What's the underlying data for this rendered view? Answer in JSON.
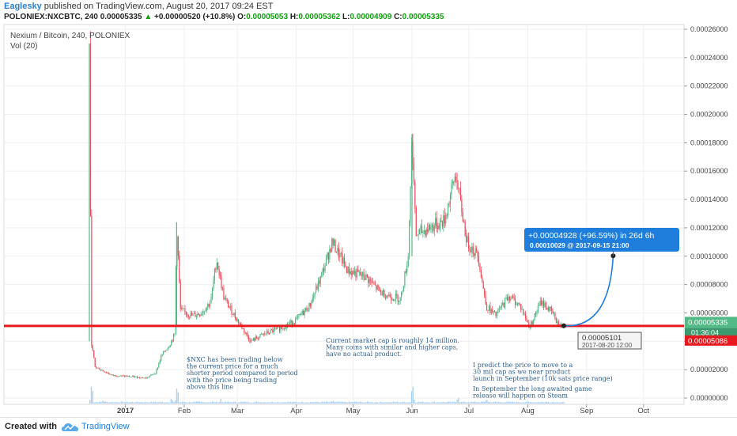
{
  "header": {
    "author": "Eaglesky",
    "published": " published on TradingView.com, August 20, 2017 09:24 EST",
    "symbol_line": "POLONIEX:NXCBTC, 240  0.00005335 ",
    "change_arrow": "▲",
    "change": " +0.00000520 (+10.8%) ",
    "o_label": "O:",
    "o_value": "0.00005053",
    "h_label": " H:",
    "h_value": "0.00005362",
    "l_label": " L:",
    "l_value": "0.00004909",
    "c_label": " C:",
    "c_value": "0.00005335"
  },
  "legend": {
    "title": "Nexium / Bitcoin, 240, POLONIEX",
    "vol": "Vol (20)"
  },
  "footer": {
    "created_with": "Created with",
    "brand": "TradingView"
  },
  "colors": {
    "up": "#53b987",
    "down": "#eb4d5c",
    "support_line": "#e8191e",
    "projection": "#1f7ddb",
    "volume": "#9fcbef"
  },
  "chart_data": {
    "type": "candlestick",
    "symbol": "POLONIEX:NXCBTC",
    "x_ticks": [
      "2017",
      "Feb",
      "Mar",
      "Apr",
      "May",
      "Jun",
      "Jul",
      "Aug",
      "Sep",
      "Oct"
    ],
    "y_ticks": [
      "0.00026000",
      "0.00024000",
      "0.00022000",
      "0.00020000",
      "0.00018000",
      "0.00016000",
      "0.00014000",
      "0.00012000",
      "0.00010000",
      "0.00008000",
      "0.00006000",
      "0.00004000",
      "0.00002000",
      "0.00000000"
    ],
    "ylim": [
      0,
      0.00026
    ],
    "price_path": [
      {
        "date": "2016-12-13",
        "price": 0.00025
      },
      {
        "date": "2016-12-14",
        "price": 4e-05
      },
      {
        "date": "2016-12-16",
        "price": 2.2e-05
      },
      {
        "date": "2016-12-25",
        "price": 1.6e-05
      },
      {
        "date": "2017-01-05",
        "price": 1.5e-05
      },
      {
        "date": "2017-01-12",
        "price": 1.4e-05
      },
      {
        "date": "2017-01-17",
        "price": 1.8e-05
      },
      {
        "date": "2017-01-20",
        "price": 3e-05
      },
      {
        "date": "2017-01-24",
        "price": 3.7e-05
      },
      {
        "date": "2017-01-27",
        "price": 4.5e-05
      },
      {
        "date": "2017-01-28",
        "price": 0.000124
      },
      {
        "date": "2017-01-30",
        "price": 6.2e-05
      },
      {
        "date": "2017-02-05",
        "price": 5.8e-05
      },
      {
        "date": "2017-02-10",
        "price": 6e-05
      },
      {
        "date": "2017-02-15",
        "price": 6.8e-05
      },
      {
        "date": "2017-02-18",
        "price": 9.8e-05
      },
      {
        "date": "2017-02-22",
        "price": 7e-05
      },
      {
        "date": "2017-03-01",
        "price": 5.5e-05
      },
      {
        "date": "2017-03-08",
        "price": 4e-05
      },
      {
        "date": "2017-03-15",
        "price": 4.5e-05
      },
      {
        "date": "2017-03-25",
        "price": 5e-05
      },
      {
        "date": "2017-04-01",
        "price": 5.5e-05
      },
      {
        "date": "2017-04-08",
        "price": 6.5e-05
      },
      {
        "date": "2017-04-14",
        "price": 8.5e-05
      },
      {
        "date": "2017-04-20",
        "price": 0.00011
      },
      {
        "date": "2017-04-28",
        "price": 9e-05
      },
      {
        "date": "2017-05-08",
        "price": 8.5e-05
      },
      {
        "date": "2017-05-15",
        "price": 7.5e-05
      },
      {
        "date": "2017-05-20",
        "price": 7.2e-05
      },
      {
        "date": "2017-05-26",
        "price": 7e-05
      },
      {
        "date": "2017-05-30",
        "price": 0.0001
      },
      {
        "date": "2017-06-01",
        "price": 0.000186
      },
      {
        "date": "2017-06-03",
        "price": 0.000115
      },
      {
        "date": "2017-06-10",
        "price": 0.00012
      },
      {
        "date": "2017-06-18",
        "price": 0.000125
      },
      {
        "date": "2017-06-24",
        "price": 0.000158
      },
      {
        "date": "2017-06-30",
        "price": 0.00011
      },
      {
        "date": "2017-07-06",
        "price": 0.0001
      },
      {
        "date": "2017-07-10",
        "price": 6.5e-05
      },
      {
        "date": "2017-07-15",
        "price": 5.8e-05
      },
      {
        "date": "2017-07-22",
        "price": 7.2e-05
      },
      {
        "date": "2017-07-28",
        "price": 6.5e-05
      },
      {
        "date": "2017-08-02",
        "price": 5e-05
      },
      {
        "date": "2017-08-08",
        "price": 6.8e-05
      },
      {
        "date": "2017-08-14",
        "price": 6e-05
      },
      {
        "date": "2017-08-18",
        "price": 5e-05
      },
      {
        "date": "2017-08-20",
        "price": 5.335e-05
      }
    ],
    "volume_path": [
      {
        "date": "2016-12-14",
        "value": 0.9
      },
      {
        "date": "2016-12-20",
        "value": 0.15
      },
      {
        "date": "2017-01-25",
        "value": 0.25
      },
      {
        "date": "2017-01-28",
        "value": 0.8
      },
      {
        "date": "2017-02-20",
        "value": 0.2
      },
      {
        "date": "2017-04-20",
        "value": 0.15
      },
      {
        "date": "2017-06-01",
        "value": 0.9
      },
      {
        "date": "2017-06-25",
        "value": 0.3
      },
      {
        "date": "2017-07-10",
        "value": 0.2
      }
    ],
    "support_level": 5.086e-05,
    "current_price": 5.335e-05,
    "last_price_label": "0.00005335",
    "countdown_label": "01:36:04",
    "support_label": "0.00005086",
    "crosshair_price": "0.00005101",
    "crosshair_time": "2017-08-20 12:00",
    "projection": {
      "from": {
        "date": "2017-08-20",
        "price": 5.101e-05
      },
      "to": {
        "date": "2017-09-15",
        "price": 0.00010029
      },
      "text_main": "+0.00004928 (+96.59%) in 26d 6h",
      "text_sub": "0.00010029  @ 2017-09-15  21:00"
    },
    "annotations": [
      [
        "$NXC has been trading below",
        " the current price for a much",
        "shorter period compared to period",
        "with the price being trading",
        " above this line"
      ],
      [
        "Current market cap is roughly 14 million.",
        "Many coins with similar and higher caps,",
        "have no actual product."
      ],
      [
        "I predict the price to move to a",
        "30 mil cap as we near product",
        "launch in September (10k sats price range)"
      ],
      [
        "In September the long awaited game",
        "release will happen on Steam"
      ]
    ]
  }
}
